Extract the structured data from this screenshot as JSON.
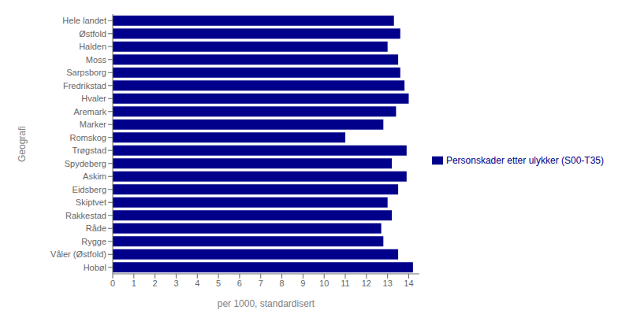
{
  "chart_data": {
    "type": "bar",
    "orientation": "horizontal",
    "categories": [
      "Hele landet",
      "Østfold",
      "Halden",
      "Moss",
      "Sarpsborg",
      "Fredrikstad",
      "Hvaler",
      "Aremark",
      "Marker",
      "Romskog",
      "Trøgstad",
      "Spydeberg",
      "Askim",
      "Eidsberg",
      "Skiptvet",
      "Rakkestad",
      "Råde",
      "Rygge",
      "Våler (Østfold)",
      "Hobøl"
    ],
    "series": [
      {
        "name": "Personskader etter ulykker (S00-T35)",
        "color": "#00008B",
        "values": [
          13.3,
          13.6,
          13.0,
          13.5,
          13.6,
          13.8,
          14.0,
          13.4,
          12.8,
          11.0,
          13.9,
          13.2,
          13.9,
          13.5,
          13.0,
          13.2,
          12.7,
          12.8,
          13.5,
          14.2
        ]
      }
    ],
    "xlabel": "per 1000, standardisert",
    "ylabel": "Geografi",
    "xlim": [
      0,
      14.5
    ],
    "xticks": [
      0,
      1,
      2,
      3,
      4,
      5,
      6,
      7,
      8,
      9,
      10,
      11,
      12,
      13,
      14
    ],
    "grid": false,
    "legend": "right"
  }
}
